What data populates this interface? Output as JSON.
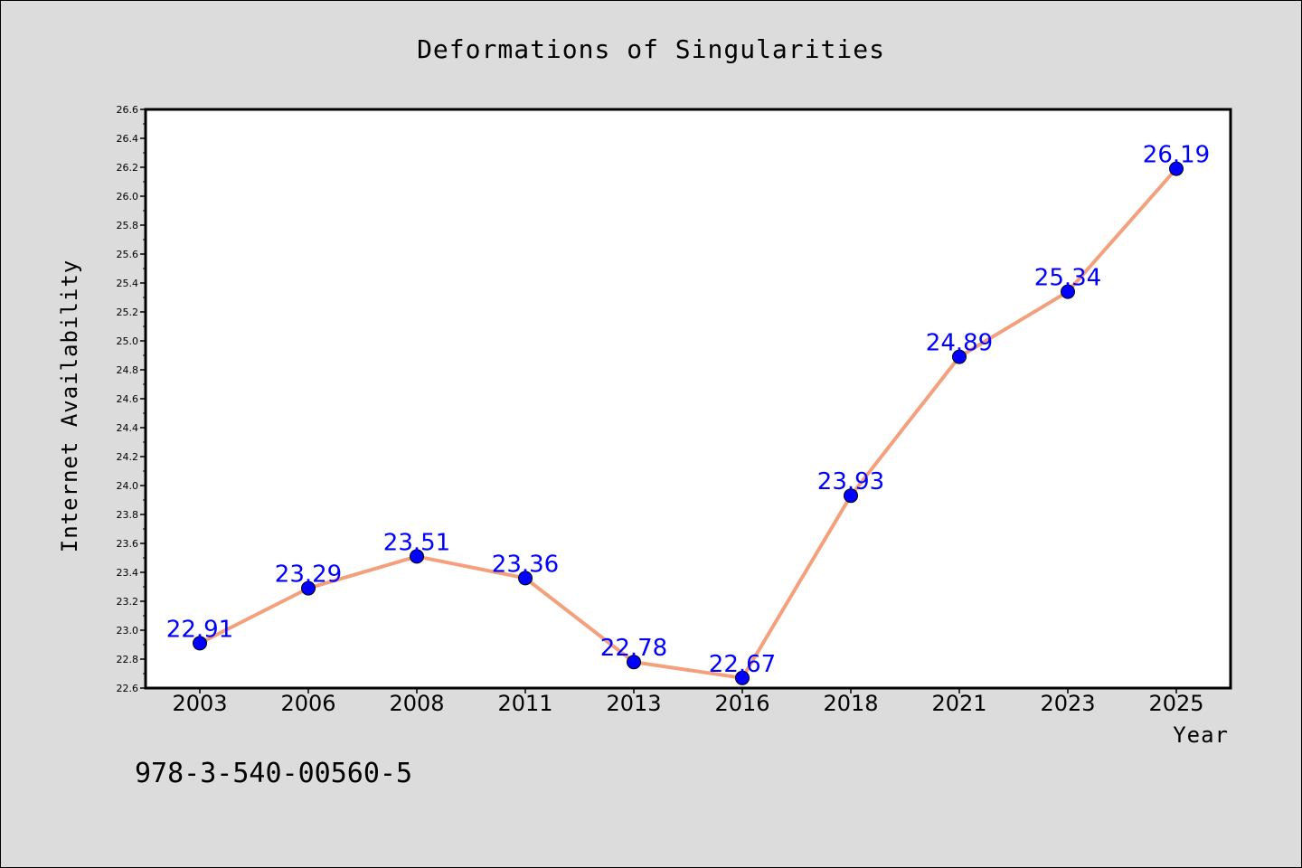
{
  "chart_data": {
    "type": "line",
    "title": "Deformations of Singularities",
    "xlabel": "Year",
    "ylabel": "Internet Availability",
    "categories": [
      "2003",
      "2006",
      "2008",
      "2011",
      "2013",
      "2016",
      "2018",
      "2021",
      "2023",
      "2025"
    ],
    "values": [
      22.91,
      23.29,
      23.51,
      23.36,
      22.78,
      22.67,
      23.93,
      24.89,
      25.34,
      26.19
    ],
    "data_labels": [
      "22.91",
      "23.29",
      "23.51",
      "23.36",
      "22.78",
      "22.67",
      "23.93",
      "24.89",
      "25.34",
      "26.19"
    ],
    "ylim": [
      22.6,
      26.6
    ],
    "yticks": [
      "22.6",
      "22.8",
      "23.0",
      "23.2",
      "23.4",
      "23.6",
      "23.8",
      "24.0",
      "24.2",
      "24.4",
      "24.6",
      "24.8",
      "25.0",
      "25.2",
      "25.4",
      "25.6",
      "25.8",
      "26.0",
      "26.2",
      "26.4",
      "26.6"
    ],
    "grid": false,
    "line_color": "#f4a07c",
    "marker_color": "#0000ff",
    "label_color": "#0000ff"
  },
  "footer": {
    "isbn": "978-3-540-00560-5"
  }
}
